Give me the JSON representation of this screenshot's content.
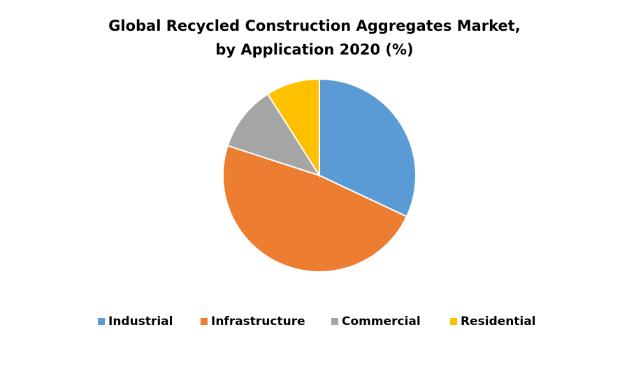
{
  "chart_data": {
    "type": "pie",
    "title": [
      "Global Recycled Construction Aggregates Market,",
      "by Application 2020 (%)"
    ],
    "categories": [
      "Industrial",
      "Infrastructure",
      "Commercial",
      "Residential"
    ],
    "values": [
      32,
      48,
      11,
      9
    ],
    "colors": [
      "#5b9bd5",
      "#ed7d31",
      "#a5a5a5",
      "#ffc000"
    ],
    "legend": "bottom"
  }
}
